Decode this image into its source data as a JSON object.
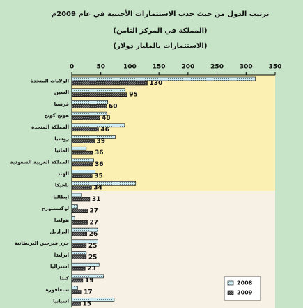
{
  "chart_data": {
    "type": "bar",
    "orientation": "horizontal",
    "title": "ترتيب الدول من حيث جذب الاستثمارات الأجنبية في عام 2009م",
    "subtitle": "(المملكة في المركز الثامن)",
    "note": "(الاستثمارات بالمليار دولار)",
    "categories": [
      "الولايات المتحدة",
      "الصين",
      "فرنسا",
      "هونج كونج",
      "المملكة المتحدة",
      "روسيا",
      "ألمانيا",
      "المملكة العربية السعودية",
      "الهند",
      "بلجيكا",
      "ايطاليا",
      "لوكسمبورج",
      "هولندا",
      "البرازيل",
      "جزر فيرجين البريطانية",
      "ايرلندا",
      "استراليا",
      "كندا",
      "سنغافورة",
      "اسبانيا"
    ],
    "series": [
      {
        "name": "2008",
        "color": "#cdeef4",
        "values": [
          316,
          92,
          62,
          60,
          91,
          75,
          25,
          38,
          40,
          110,
          17,
          10,
          5,
          45,
          45,
          25,
          47,
          55,
          10,
          73
        ]
      },
      {
        "name": "2009",
        "color": "#333333",
        "values": [
          130,
          95,
          60,
          48,
          46,
          39,
          36,
          36,
          35,
          34,
          31,
          27,
          27,
          26,
          25,
          25,
          23,
          19,
          17,
          15
        ]
      }
    ],
    "xlim": [
      0,
      350
    ],
    "xticks": [
      0,
      50,
      100,
      150,
      200,
      250,
      300,
      350
    ],
    "legend": "bottom-right"
  }
}
